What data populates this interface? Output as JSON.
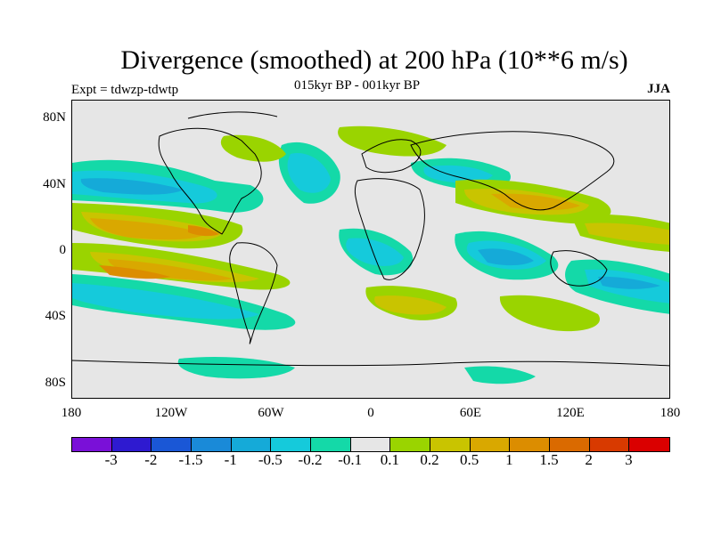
{
  "title": "Divergence (smoothed) at 200 hPa (10**6 m/s)",
  "subtitle": "015kyr BP - 001kyr BP",
  "experiment": "Expt = tdwzp-tdwtp",
  "season": "JJA",
  "y_ticks": [
    "80N",
    "40N",
    "0",
    "40S",
    "80S"
  ],
  "x_ticks": [
    "180",
    "120W",
    "60W",
    "0",
    "60E",
    "120E",
    "180"
  ],
  "colorbar": {
    "colors": [
      "#7a10d8",
      "#2e1ad0",
      "#1a57d6",
      "#1a8ad8",
      "#15aad8",
      "#15cadb",
      "#14d9a8",
      "#e6e6e6",
      "#9ad400",
      "#c9c400",
      "#d9a800",
      "#dc8d00",
      "#da6a00",
      "#d83a00",
      "#da0000"
    ],
    "labels": [
      "-3",
      "-2",
      "-1.5",
      "-1",
      "-0.5",
      "-0.2",
      "-0.1",
      "0.1",
      "0.2",
      "0.5",
      "1",
      "1.5",
      "2",
      "3"
    ]
  }
}
